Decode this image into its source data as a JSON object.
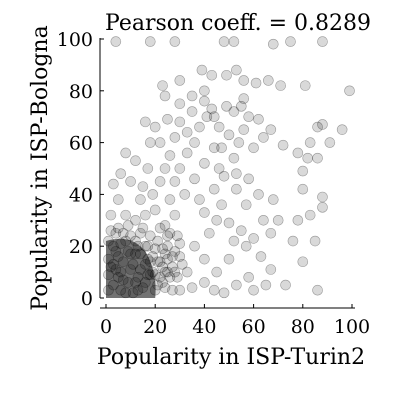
{
  "chart_data": {
    "type": "scatter",
    "title": "Pearson coeff. = 0.8289",
    "xlabel": "Popularity in ISP-Turin2",
    "ylabel": "Popularity in ISP-Bologna",
    "xlim": [
      0,
      100
    ],
    "ylim": [
      0,
      100
    ],
    "xticks": [
      "0",
      "20",
      "40",
      "60",
      "80",
      "100"
    ],
    "yticks": [
      "0",
      "20",
      "40",
      "60",
      "80",
      "100"
    ],
    "grid": false,
    "legend": "none",
    "marker_color": "#000000",
    "marker_alpha": 0.15,
    "points": [
      [
        4,
        99
      ],
      [
        18,
        99
      ],
      [
        28,
        99
      ],
      [
        48,
        99
      ],
      [
        52,
        99
      ],
      [
        68,
        98
      ],
      [
        75,
        99
      ],
      [
        88,
        99
      ],
      [
        39,
        88
      ],
      [
        43,
        86
      ],
      [
        49,
        86
      ],
      [
        53,
        88
      ],
      [
        40,
        80
      ],
      [
        56,
        84
      ],
      [
        30,
        84
      ],
      [
        56,
        77
      ],
      [
        61,
        83
      ],
      [
        66,
        84
      ],
      [
        71,
        82
      ],
      [
        81,
        82
      ],
      [
        99,
        80
      ],
      [
        23,
        82
      ],
      [
        24,
        78
      ],
      [
        25,
        69
      ],
      [
        30,
        75
      ],
      [
        35,
        78
      ],
      [
        40,
        76
      ],
      [
        43,
        73
      ],
      [
        44,
        70
      ],
      [
        49,
        74
      ],
      [
        52,
        72
      ],
      [
        55,
        74
      ],
      [
        58,
        70
      ],
      [
        46,
        66
      ],
      [
        56,
        65
      ],
      [
        62,
        69
      ],
      [
        67,
        65
      ],
      [
        72,
        59
      ],
      [
        78,
        56
      ],
      [
        86,
        66
      ],
      [
        91,
        60
      ],
      [
        96,
        65
      ],
      [
        88,
        67
      ],
      [
        83,
        60
      ],
      [
        82,
        54
      ],
      [
        86,
        54
      ],
      [
        80,
        42
      ],
      [
        80,
        49
      ],
      [
        78,
        30
      ],
      [
        88,
        35
      ],
      [
        88,
        39
      ],
      [
        83,
        32
      ],
      [
        76,
        22
      ],
      [
        80,
        14
      ],
      [
        85,
        22
      ],
      [
        73,
        5
      ],
      [
        86,
        3
      ],
      [
        60,
        58
      ],
      [
        64,
        62
      ],
      [
        58,
        46
      ],
      [
        53,
        48
      ],
      [
        57,
        36
      ],
      [
        64,
        30
      ],
      [
        53,
        42
      ],
      [
        62,
        40
      ],
      [
        68,
        38
      ],
      [
        70,
        30
      ],
      [
        55,
        26
      ],
      [
        60,
        23
      ],
      [
        63,
        16
      ],
      [
        67,
        25
      ],
      [
        47,
        36
      ],
      [
        50,
        29
      ],
      [
        52,
        22
      ],
      [
        57,
        20
      ],
      [
        67,
        11
      ],
      [
        65,
        5
      ],
      [
        60,
        3
      ],
      [
        58,
        8
      ],
      [
        53,
        5
      ],
      [
        48,
        2
      ],
      [
        44,
        3
      ],
      [
        40,
        6
      ],
      [
        35,
        4
      ],
      [
        33,
        10
      ],
      [
        30,
        3
      ],
      [
        45,
        10
      ],
      [
        50,
        15
      ],
      [
        40,
        15
      ],
      [
        36,
        20
      ],
      [
        42,
        25
      ],
      [
        45,
        30
      ],
      [
        40,
        33
      ],
      [
        38,
        38
      ],
      [
        44,
        42
      ],
      [
        48,
        47
      ],
      [
        36,
        46
      ],
      [
        40,
        52
      ],
      [
        44,
        58
      ],
      [
        36,
        60
      ],
      [
        33,
        56
      ],
      [
        30,
        50
      ],
      [
        28,
        45
      ],
      [
        32,
        40
      ],
      [
        26,
        38
      ],
      [
        28,
        32
      ],
      [
        24,
        28
      ],
      [
        29,
        24
      ],
      [
        25,
        20
      ],
      [
        30,
        16
      ],
      [
        27,
        12
      ],
      [
        22,
        8
      ],
      [
        18,
        60
      ],
      [
        17,
        50
      ],
      [
        15,
        43
      ],
      [
        12,
        53
      ],
      [
        8,
        56
      ],
      [
        6,
        48
      ],
      [
        10,
        45
      ],
      [
        14,
        38
      ],
      [
        5,
        38
      ],
      [
        3,
        44
      ],
      [
        2,
        32
      ],
      [
        5,
        27
      ],
      [
        8,
        32
      ],
      [
        12,
        30
      ],
      [
        16,
        32
      ],
      [
        20,
        34
      ],
      [
        19,
        40
      ],
      [
        22,
        45
      ],
      [
        24,
        50
      ],
      [
        26,
        55
      ],
      [
        22,
        60
      ],
      [
        20,
        66
      ],
      [
        16,
        68
      ],
      [
        28,
        62
      ],
      [
        33,
        64
      ],
      [
        38,
        66
      ],
      [
        41,
        70
      ],
      [
        35,
        72
      ],
      [
        30,
        68
      ],
      [
        46,
        50
      ],
      [
        52,
        54
      ],
      [
        54,
        60
      ],
      [
        50,
        63
      ],
      [
        47,
        58
      ],
      [
        2,
        12
      ],
      [
        3,
        5
      ],
      [
        4,
        18
      ],
      [
        5,
        8
      ],
      [
        6,
        3
      ],
      [
        7,
        14
      ],
      [
        8,
        22
      ],
      [
        9,
        6
      ],
      [
        10,
        11
      ],
      [
        11,
        2
      ],
      [
        12,
        17
      ],
      [
        13,
        8
      ],
      [
        14,
        25
      ],
      [
        15,
        4
      ],
      [
        16,
        13
      ],
      [
        17,
        20
      ],
      [
        18,
        9
      ],
      [
        19,
        16
      ],
      [
        20,
        3
      ],
      [
        21,
        22
      ],
      [
        22,
        14
      ],
      [
        23,
        6
      ],
      [
        24,
        17
      ],
      [
        25,
        10
      ],
      [
        26,
        25
      ],
      [
        27,
        3
      ],
      [
        28,
        18
      ],
      [
        29,
        8
      ],
      [
        30,
        21
      ],
      [
        31,
        13
      ],
      [
        1,
        3
      ],
      [
        1,
        9
      ],
      [
        1,
        15
      ],
      [
        1,
        22
      ],
      [
        2,
        26
      ],
      [
        3,
        20
      ],
      [
        4,
        11
      ],
      [
        5,
        16
      ],
      [
        6,
        21
      ],
      [
        7,
        7
      ],
      [
        8,
        2
      ],
      [
        9,
        18
      ],
      [
        10,
        24
      ],
      [
        11,
        13
      ],
      [
        12,
        6
      ],
      [
        13,
        20
      ],
      [
        14,
        11
      ],
      [
        15,
        27
      ],
      [
        16,
        6
      ],
      [
        17,
        15
      ],
      [
        18,
        24
      ],
      [
        19,
        10
      ],
      [
        20,
        19
      ],
      [
        21,
        5
      ],
      [
        22,
        27
      ],
      [
        23,
        12
      ],
      [
        24,
        4
      ],
      [
        25,
        15
      ],
      [
        26,
        8
      ],
      [
        3,
        13
      ],
      [
        4,
        25
      ],
      [
        6,
        10
      ],
      [
        7,
        25
      ],
      [
        9,
        28
      ],
      [
        10,
        17
      ],
      [
        12,
        22
      ],
      [
        13,
        3
      ],
      [
        14,
        17
      ],
      [
        16,
        20
      ],
      [
        17,
        9
      ],
      [
        18,
        14
      ],
      [
        20,
        9
      ],
      [
        21,
        14
      ],
      [
        23,
        19
      ],
      [
        24,
        10
      ],
      [
        25,
        24
      ],
      [
        27,
        16
      ],
      [
        28,
        10
      ]
    ]
  }
}
